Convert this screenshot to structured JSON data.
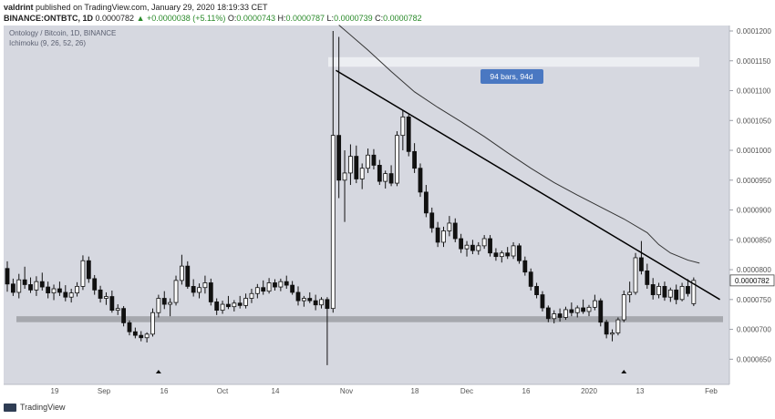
{
  "header": {
    "publisher": "valdrint",
    "published_text": "published on TradingView.com, January 29, 2020 18:19:33 CET",
    "symbol_line": {
      "symbol": "BINANCE:ONTBTC, 1D",
      "last": "0.0000782",
      "change": "▲ +0.0000038 (+5.11%)",
      "o_label": "O:",
      "o": "0.0000743",
      "h_label": "H:",
      "h": "0.0000787",
      "l_label": "L:",
      "l": "0.0000739",
      "c_label": "C:",
      "c": "0.0000782"
    }
  },
  "footer": {
    "brand": "TradingView"
  },
  "chart_data": {
    "type": "candlestick",
    "title": "Ontology / Bitcoin, 1D, BINANCE",
    "indicator": "Ichimoku (9, 26, 52, 26)",
    "annotation": "94 bars, 94d",
    "last_price_label": "0.0000782",
    "y_ticks": [
      "0.0001200",
      "0.0001150",
      "0.0001100",
      "0.0001050",
      "0.0001000",
      "0.0000950",
      "0.0000900",
      "0.0000850",
      "0.0000800",
      "0.0000750",
      "0.0000700",
      "0.0000650"
    ],
    "ylim": [
      6.2e-05,
      0.00012
    ],
    "x_ticks": [
      "19",
      "Sep",
      "16",
      "Oct",
      "14",
      "Nov",
      "18",
      "Dec",
      "16",
      "2020",
      "13",
      "Feb"
    ],
    "support_zone": [
      7.12e-05,
      7.22e-05
    ],
    "resistance_zone": [
      0.000114,
      0.0001156
    ],
    "ohlc": [
      [
        8.02e-05,
        8.14e-05,
        7.63e-05,
        7.76e-05
      ],
      [
        7.76e-05,
        7.85e-05,
        7.56e-05,
        7.62e-05
      ],
      [
        7.62e-05,
        7.93e-05,
        7.52e-05,
        7.83e-05
      ],
      [
        7.83e-05,
        8.05e-05,
        7.68e-05,
        7.75e-05
      ],
      [
        7.75e-05,
        7.87e-05,
        7.61e-05,
        7.66e-05
      ],
      [
        7.66e-05,
        7.89e-05,
        7.56e-05,
        7.8e-05
      ],
      [
        7.8e-05,
        7.95e-05,
        7.65e-05,
        7.71e-05
      ],
      [
        7.71e-05,
        7.8e-05,
        7.52e-05,
        7.61e-05
      ],
      [
        7.61e-05,
        7.75e-05,
        7.49e-05,
        7.68e-05
      ],
      [
        7.68e-05,
        7.8e-05,
        7.56e-05,
        7.62e-05
      ],
      [
        7.62e-05,
        7.74e-05,
        7.47e-05,
        7.54e-05
      ],
      [
        7.54e-05,
        7.68e-05,
        7.45e-05,
        7.61e-05
      ],
      [
        7.61e-05,
        7.79e-05,
        7.55e-05,
        7.72e-05
      ],
      [
        7.72e-05,
        8.24e-05,
        7.66e-05,
        8.15e-05
      ],
      [
        8.15e-05,
        8.22e-05,
        7.78e-05,
        7.85e-05
      ],
      [
        7.85e-05,
        7.91e-05,
        7.58e-05,
        7.66e-05
      ],
      [
        7.66e-05,
        7.73e-05,
        7.45e-05,
        7.52e-05
      ],
      [
        7.52e-05,
        7.62e-05,
        7.41e-05,
        7.55e-05
      ],
      [
        7.55e-05,
        7.65e-05,
        7.28e-05,
        7.32e-05
      ],
      [
        7.32e-05,
        7.42e-05,
        7.24e-05,
        7.35e-05
      ],
      [
        7.35e-05,
        7.39e-05,
        7.05e-05,
        7.11e-05
      ],
      [
        7.11e-05,
        7.15e-05,
        6.9e-05,
        6.96e-05
      ],
      [
        6.96e-05,
        7.03e-05,
        6.85e-05,
        6.9e-05
      ],
      [
        6.9e-05,
        6.97e-05,
        6.8e-05,
        6.86e-05
      ],
      [
        6.86e-05,
        6.95e-05,
        6.78e-05,
        6.92e-05
      ],
      [
        6.92e-05,
        7.35e-05,
        6.88e-05,
        7.28e-05
      ],
      [
        7.28e-05,
        7.58e-05,
        7.2e-05,
        7.52e-05
      ],
      [
        7.52e-05,
        7.64e-05,
        7.34e-05,
        7.42e-05
      ],
      [
        7.42e-05,
        7.52e-05,
        7.22e-05,
        7.45e-05
      ],
      [
        7.45e-05,
        7.9e-05,
        7.4e-05,
        7.82e-05
      ],
      [
        7.82e-05,
        8.25e-05,
        7.75e-05,
        8.06e-05
      ],
      [
        8.06e-05,
        8.14e-05,
        7.68e-05,
        7.72e-05
      ],
      [
        7.72e-05,
        7.84e-05,
        7.55e-05,
        7.62e-05
      ],
      [
        7.62e-05,
        7.77e-05,
        7.52e-05,
        7.7e-05
      ],
      [
        7.7e-05,
        7.9e-05,
        7.6e-05,
        7.78e-05
      ],
      [
        7.78e-05,
        7.85e-05,
        7.4e-05,
        7.46e-05
      ],
      [
        7.46e-05,
        7.52e-05,
        7.24e-05,
        7.32e-05
      ],
      [
        7.32e-05,
        7.48e-05,
        7.26e-05,
        7.42e-05
      ],
      [
        7.42e-05,
        7.56e-05,
        7.34e-05,
        7.38e-05
      ],
      [
        7.38e-05,
        7.49e-05,
        7.3e-05,
        7.44e-05
      ],
      [
        7.44e-05,
        7.56e-05,
        7.35e-05,
        7.4e-05
      ],
      [
        7.4e-05,
        7.6e-05,
        7.35e-05,
        7.52e-05
      ],
      [
        7.52e-05,
        7.68e-05,
        7.44e-05,
        7.6e-05
      ],
      [
        7.6e-05,
        7.76e-05,
        7.52e-05,
        7.7e-05
      ],
      [
        7.7e-05,
        7.82e-05,
        7.58e-05,
        7.64e-05
      ],
      [
        7.64e-05,
        7.86e-05,
        7.6e-05,
        7.78e-05
      ],
      [
        7.78e-05,
        7.84e-05,
        7.65e-05,
        7.71e-05
      ],
      [
        7.71e-05,
        7.85e-05,
        7.64e-05,
        7.8e-05
      ],
      [
        7.8e-05,
        7.9e-05,
        7.68e-05,
        7.74e-05
      ],
      [
        7.74e-05,
        7.81e-05,
        7.58e-05,
        7.62e-05
      ],
      [
        7.62e-05,
        7.72e-05,
        7.4e-05,
        7.48e-05
      ],
      [
        7.48e-05,
        7.56e-05,
        7.38e-05,
        7.52e-05
      ],
      [
        7.52e-05,
        7.62e-05,
        7.44e-05,
        7.48e-05
      ],
      [
        7.48e-05,
        7.58e-05,
        7.32e-05,
        7.41e-05
      ],
      [
        7.41e-05,
        7.54e-05,
        7.35e-05,
        7.5e-05
      ],
      [
        7.5e-05,
        7.54e-05,
        6.4e-05,
        7.35e-05
      ],
      [
        7.35e-05,
        0.00012,
        7.28e-05,
        0.0001025
      ],
      [
        0.0001025,
        0.000119,
        9.2e-05,
        9.5e-05
      ],
      [
        9.5e-05,
        0.0001,
        8.8e-05,
        9.62e-05
      ],
      [
        9.62e-05,
        0.000101,
        9.42e-05,
        9.9e-05
      ],
      [
        9.9e-05,
        0.0001008,
        9.45e-05,
        9.52e-05
      ],
      [
        9.52e-05,
        9.78e-05,
        9.35e-05,
        9.7e-05
      ],
      [
        9.7e-05,
        0.0001003,
        9.62e-05,
        9.92e-05
      ],
      [
        9.92e-05,
        0.0001002,
        9.68e-05,
        9.75e-05
      ],
      [
        9.75e-05,
        9.84e-05,
        9.42e-05,
        9.48e-05
      ],
      [
        9.48e-05,
        9.66e-05,
        9.36e-05,
        9.61e-05
      ],
      [
        9.61e-05,
        9.75e-05,
        9.4e-05,
        9.45e-05
      ],
      [
        9.45e-05,
        0.0001032,
        9.4e-05,
        0.0001025
      ],
      [
        0.0001025,
        0.0001068,
        0.0001,
        0.0001056
      ],
      [
        0.0001056,
        0.000106,
        9.9e-05,
        9.98e-05
      ],
      [
        9.98e-05,
        0.0001012,
        9.62e-05,
        9.7e-05
      ],
      [
        9.7e-05,
        9.78e-05,
        9.22e-05,
        9.3e-05
      ],
      [
        9.3e-05,
        9.42e-05,
        8.88e-05,
        8.95e-05
      ],
      [
        8.95e-05,
        9.04e-05,
        8.62e-05,
        8.7e-05
      ],
      [
        8.7e-05,
        8.8e-05,
        8.38e-05,
        8.46e-05
      ],
      [
        8.46e-05,
        8.72e-05,
        8.38e-05,
        8.65e-05
      ],
      [
        8.65e-05,
        8.9e-05,
        8.56e-05,
        8.78e-05
      ],
      [
        8.78e-05,
        8.86e-05,
        8.46e-05,
        8.52e-05
      ],
      [
        8.52e-05,
        8.6e-05,
        8.28e-05,
        8.35e-05
      ],
      [
        8.35e-05,
        8.48e-05,
        8.22e-05,
        8.41e-05
      ],
      [
        8.41e-05,
        8.5e-05,
        8.26e-05,
        8.32e-05
      ],
      [
        8.32e-05,
        8.46e-05,
        8.25e-05,
        8.4e-05
      ],
      [
        8.4e-05,
        8.58e-05,
        8.35e-05,
        8.52e-05
      ],
      [
        8.52e-05,
        8.58e-05,
        8.22e-05,
        8.28e-05
      ],
      [
        8.28e-05,
        8.36e-05,
        8.15e-05,
        8.22e-05
      ],
      [
        8.22e-05,
        8.32e-05,
        8.12e-05,
        8.28e-05
      ],
      [
        8.28e-05,
        8.38e-05,
        8.18e-05,
        8.23e-05
      ],
      [
        8.23e-05,
        8.46e-05,
        8.18e-05,
        8.4e-05
      ],
      [
        8.4e-05,
        8.44e-05,
        8.1e-05,
        8.15e-05
      ],
      [
        8.15e-05,
        8.22e-05,
        7.9e-05,
        7.96e-05
      ],
      [
        7.96e-05,
        8.02e-05,
        7.65e-05,
        7.72e-05
      ],
      [
        7.72e-05,
        7.78e-05,
        7.52e-05,
        7.58e-05
      ],
      [
        7.58e-05,
        7.64e-05,
        7.3e-05,
        7.36e-05
      ],
      [
        7.36e-05,
        7.4e-05,
        7.12e-05,
        7.18e-05
      ],
      [
        7.18e-05,
        7.32e-05,
        7.1e-05,
        7.26e-05
      ],
      [
        7.26e-05,
        7.35e-05,
        7.13e-05,
        7.2e-05
      ],
      [
        7.2e-05,
        7.38e-05,
        7.16e-05,
        7.33e-05
      ],
      [
        7.33e-05,
        7.45e-05,
        7.22e-05,
        7.28e-05
      ],
      [
        7.28e-05,
        7.4e-05,
        7.2e-05,
        7.36e-05
      ],
      [
        7.36e-05,
        7.5e-05,
        7.26e-05,
        7.3e-05
      ],
      [
        7.3e-05,
        7.41e-05,
        7.22e-05,
        7.37e-05
      ],
      [
        7.37e-05,
        7.58e-05,
        7.32e-05,
        7.48e-05
      ],
      [
        7.48e-05,
        7.52e-05,
        7.05e-05,
        7.12e-05
      ],
      [
        7.12e-05,
        7.16e-05,
        6.85e-05,
        6.92e-05
      ],
      [
        6.92e-05,
        7e-05,
        6.8e-05,
        6.94e-05
      ],
      [
        6.94e-05,
        7.2e-05,
        6.9e-05,
        7.16e-05
      ],
      [
        7.16e-05,
        7.65e-05,
        7.12e-05,
        7.58e-05
      ],
      [
        7.58e-05,
        7.8e-05,
        7.45e-05,
        7.62e-05
      ],
      [
        7.62e-05,
        8.28e-05,
        7.58e-05,
        8.2e-05
      ],
      [
        8.2e-05,
        8.48e-05,
        7.92e-05,
        7.98e-05
      ],
      [
        7.98e-05,
        8.1e-05,
        7.68e-05,
        7.75e-05
      ],
      [
        7.75e-05,
        7.86e-05,
        7.5e-05,
        7.58e-05
      ],
      [
        7.58e-05,
        7.78e-05,
        7.52e-05,
        7.72e-05
      ],
      [
        7.72e-05,
        7.8e-05,
        7.48e-05,
        7.54e-05
      ],
      [
        7.54e-05,
        7.7e-05,
        7.46e-05,
        7.66e-05
      ],
      [
        7.66e-05,
        7.75e-05,
        7.42e-05,
        7.5e-05
      ],
      [
        7.5e-05,
        7.78e-05,
        7.47e-05,
        7.72e-05
      ],
      [
        7.72e-05,
        7.84e-05,
        7.55e-05,
        7.6e-05
      ],
      [
        7.43e-05,
        7.87e-05,
        7.39e-05,
        7.82e-05
      ]
    ],
    "kijun_line": [
      [
        57,
        0.000121
      ],
      [
        62,
        0.0001168
      ],
      [
        66,
        0.0001132
      ],
      [
        70,
        0.0001098
      ],
      [
        74,
        0.0001072
      ],
      [
        78,
        0.0001048
      ],
      [
        82,
        0.0001023
      ],
      [
        86,
        9.96e-05
      ],
      [
        90,
        9.7e-05
      ],
      [
        94,
        9.46e-05
      ],
      [
        98,
        9.25e-05
      ],
      [
        102,
        9.05e-05
      ],
      [
        106,
        8.85e-05
      ],
      [
        110,
        8.62e-05
      ],
      [
        112,
        8.42e-05
      ],
      [
        114,
        8.28e-05
      ],
      [
        117,
        8.16e-05
      ],
      [
        119,
        8.11e-05
      ]
    ],
    "trendline": [
      [
        56.5,
        0.0001134
      ],
      [
        122.5,
        7.5e-05
      ]
    ],
    "bottom_markers": [
      26,
      106
    ],
    "measure_box": [
      0.0001125,
      0.0001138
    ]
  }
}
